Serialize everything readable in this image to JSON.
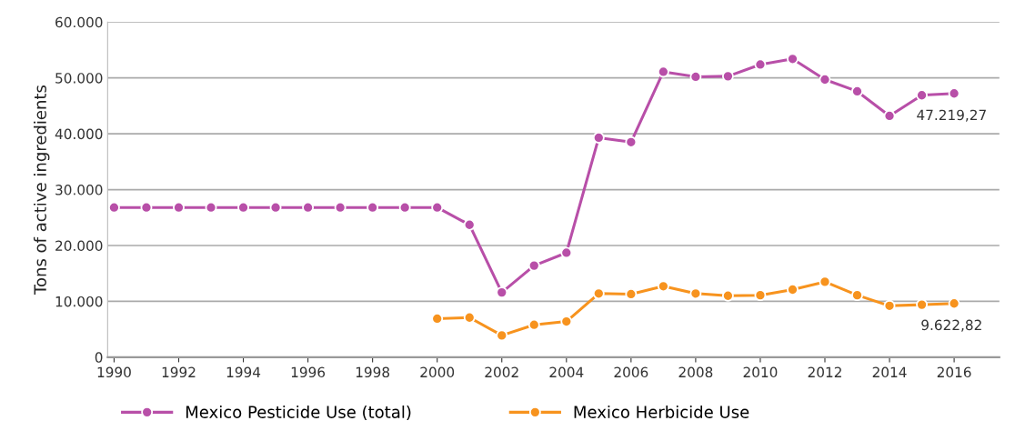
{
  "chart_data": {
    "type": "line",
    "ylabel": "Tons of active ingredients",
    "x": [
      1990,
      1991,
      1992,
      1993,
      1994,
      1995,
      1996,
      1997,
      1998,
      1999,
      2000,
      2001,
      2002,
      2003,
      2004,
      2005,
      2006,
      2007,
      2008,
      2009,
      2010,
      2011,
      2012,
      2013,
      2014,
      2015,
      2016
    ],
    "series": [
      {
        "name": "Mexico Pesticide Use (total)",
        "color": "#b84fa8",
        "values": [
          26800,
          26800,
          26800,
          26800,
          26800,
          26800,
          26800,
          26800,
          26800,
          26800,
          26800,
          23700,
          11600,
          16400,
          18700,
          39300,
          38500,
          51100,
          50200,
          50300,
          52400,
          53400,
          49700,
          47600,
          43200,
          46900,
          47219.27
        ]
      },
      {
        "name": "Mexico Herbicide Use",
        "color": "#f7931e",
        "values": [
          null,
          null,
          null,
          null,
          null,
          null,
          null,
          null,
          null,
          null,
          6900,
          7100,
          3900,
          5800,
          6400,
          11400,
          11300,
          12700,
          11400,
          11000,
          11100,
          12100,
          13500,
          11100,
          9200,
          9400,
          9622.82
        ]
      }
    ],
    "annotations": [
      {
        "text": "47.219,27",
        "x": 2016,
        "y": 47219.27
      },
      {
        "text": "9.622,82",
        "x": 2016,
        "y": 9622.82
      }
    ],
    "xlim": [
      1989.8,
      2017.4
    ],
    "xticks": [
      1990,
      1992,
      1994,
      1996,
      1998,
      2000,
      2002,
      2004,
      2006,
      2008,
      2010,
      2012,
      2014,
      2016
    ],
    "ylim": [
      0,
      60000
    ],
    "yticks": [
      {
        "value": 0,
        "label": "0"
      },
      {
        "value": 10000,
        "label": "10.000"
      },
      {
        "value": 20000,
        "label": "20.000"
      },
      {
        "value": 30000,
        "label": "30.000"
      },
      {
        "value": 40000,
        "label": "40.000"
      },
      {
        "value": 50000,
        "label": "50.000"
      },
      {
        "value": 60000,
        "label": "60.000"
      }
    ],
    "grid": "y",
    "legend": "bottom",
    "marker": "circle",
    "line_style": "solid"
  }
}
